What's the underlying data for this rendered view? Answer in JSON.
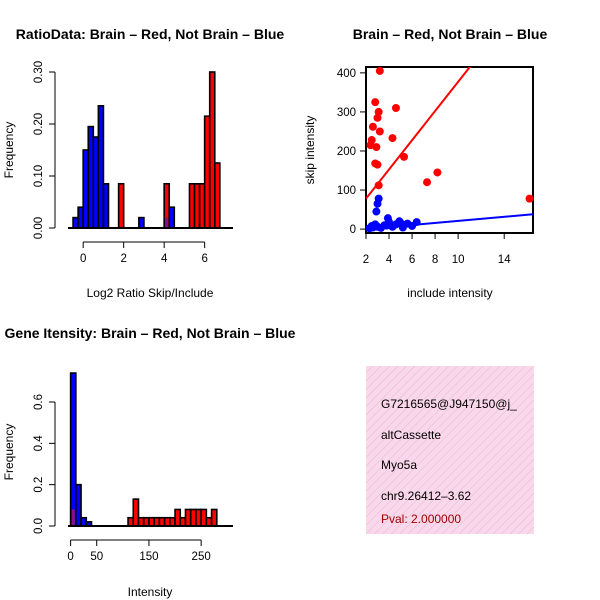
{
  "colors": {
    "brain": "#ff0000",
    "not_brain": "#0000ff",
    "overlap": "#8b0d8b",
    "panel_bg": "#f8d8ea",
    "pval_text": "#a00000"
  },
  "chart_data": [
    {
      "id": "ratio_hist",
      "type": "bar",
      "title": "RatioData: Brain – Red, Not Brain – Blue",
      "xlabel": "Log2 Ratio Skip/Include",
      "ylabel": "Frequency",
      "xlim": [
        -0.75,
        7.4
      ],
      "ylim": [
        0,
        0.3
      ],
      "xticks": [
        0,
        2,
        4,
        6
      ],
      "yticks": [
        0.0,
        0.1,
        0.2,
        0.3
      ],
      "ytick_labels": [
        "0.00",
        "0.10",
        "0.20",
        "0.30"
      ],
      "bin_width": 0.25,
      "series": [
        {
          "name": "Brain",
          "color": "brain",
          "bins": [
            [
              1.75,
              0.085
            ],
            [
              4.0,
              0.085
            ],
            [
              5.25,
              0.085
            ],
            [
              5.5,
              0.085
            ],
            [
              5.75,
              0.085
            ],
            [
              6.0,
              0.215
            ],
            [
              6.25,
              0.3
            ],
            [
              6.5,
              0.125
            ]
          ]
        },
        {
          "name": "Not Brain",
          "color": "not_brain",
          "bins": [
            [
              -0.5,
              0.02
            ],
            [
              -0.25,
              0.04
            ],
            [
              0.0,
              0.15
            ],
            [
              0.25,
              0.195
            ],
            [
              0.5,
              0.175
            ],
            [
              0.75,
              0.235
            ],
            [
              1.0,
              0.085
            ],
            [
              2.75,
              0.02
            ],
            [
              4.25,
              0.04
            ]
          ]
        }
      ],
      "overlap_bins": [
        [
          4.0,
          0.02
        ]
      ]
    },
    {
      "id": "intensity_scatter",
      "type": "scatter",
      "title": "Brain – Red, Not Brain – Blue",
      "xlabel": "include intensity",
      "ylabel": "skip intensity",
      "xlim": [
        2,
        16.5
      ],
      "ylim": [
        -10,
        415
      ],
      "xticks": [
        2,
        4,
        6,
        8,
        10,
        14
      ],
      "yticks": [
        0,
        100,
        200,
        300,
        400
      ],
      "series": [
        {
          "name": "Brain",
          "color": "brain",
          "points": [
            [
              3.2,
              405
            ],
            [
              2.8,
              325
            ],
            [
              3.1,
              300
            ],
            [
              4.6,
              310
            ],
            [
              3.0,
              285
            ],
            [
              2.6,
              262
            ],
            [
              3.2,
              250
            ],
            [
              4.3,
              233
            ],
            [
              2.5,
              228
            ],
            [
              2.4,
              215
            ],
            [
              2.9,
              210
            ],
            [
              5.3,
              185
            ],
            [
              2.8,
              168
            ],
            [
              3.0,
              165
            ],
            [
              8.2,
              145
            ],
            [
              7.3,
              120
            ],
            [
              3.1,
              112
            ],
            [
              16.2,
              78
            ]
          ],
          "fit": [
            [
              2.0,
              78
            ],
            [
              11.2,
              422
            ]
          ]
        },
        {
          "name": "Not Brain",
          "color": "not_brain",
          "points": [
            [
              2.3,
              2
            ],
            [
              2.5,
              8
            ],
            [
              2.6,
              4
            ],
            [
              2.8,
              12
            ],
            [
              3.0,
              6
            ],
            [
              3.3,
              3
            ],
            [
              3.6,
              10
            ],
            [
              3.9,
              28
            ],
            [
              4.0,
              18
            ],
            [
              4.3,
              6
            ],
            [
              4.6,
              12
            ],
            [
              4.9,
              20
            ],
            [
              5.2,
              4
            ],
            [
              5.6,
              14
            ],
            [
              6.0,
              8
            ],
            [
              6.4,
              18
            ],
            [
              3.0,
              65
            ],
            [
              3.1,
              78
            ],
            [
              2.9,
              45
            ],
            [
              3.8,
              9
            ],
            [
              5.0,
              16
            ]
          ],
          "fit": [
            [
              2.0,
              0
            ],
            [
              16.5,
              38
            ]
          ]
        }
      ]
    },
    {
      "id": "intensity_hist",
      "type": "bar",
      "title": "Gene Itensity: Brain – Red, Not Brain – Blue",
      "xlabel": "Intensity",
      "ylabel": "Frequency",
      "xlim": [
        -5,
        311
      ],
      "ylim": [
        0,
        0.75
      ],
      "xticks": [
        0,
        50,
        150,
        250
      ],
      "yticks": [
        0.0,
        0.2,
        0.4,
        0.6
      ],
      "ytick_labels": [
        "0.0",
        "0.2",
        "0.4",
        "0.6"
      ],
      "bin_width": 10,
      "series": [
        {
          "name": "Brain",
          "color": "brain",
          "bins": [
            [
              110,
              0.04
            ],
            [
              120,
              0.13
            ],
            [
              130,
              0.04
            ],
            [
              140,
              0.04
            ],
            [
              150,
              0.04
            ],
            [
              160,
              0.04
            ],
            [
              170,
              0.04
            ],
            [
              180,
              0.04
            ],
            [
              190,
              0.04
            ],
            [
              200,
              0.08
            ],
            [
              210,
              0.04
            ],
            [
              220,
              0.08
            ],
            [
              230,
              0.08
            ],
            [
              240,
              0.08
            ],
            [
              250,
              0.08
            ],
            [
              260,
              0.04
            ],
            [
              270,
              0.08
            ]
          ]
        },
        {
          "name": "Not Brain",
          "color": "not_brain",
          "bins": [
            [
              0,
              0.74
            ],
            [
              10,
              0.2
            ],
            [
              20,
              0.04
            ],
            [
              30,
              0.02
            ]
          ]
        }
      ],
      "overlap_bins": [
        [
          0,
          0.08
        ]
      ]
    }
  ],
  "info_panel": {
    "id_line": "G7216565@J947150@j_",
    "type_line": "altCassette",
    "gene_line": "Myo5a",
    "coord_line": "chr9.26412–3.62",
    "pval_line": "Pval: 2.000000"
  }
}
